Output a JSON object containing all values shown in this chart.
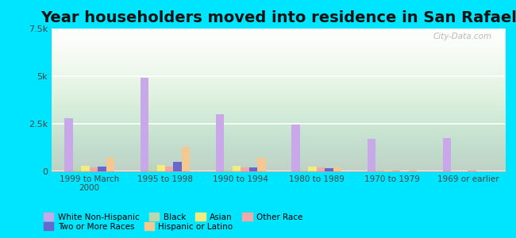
{
  "title": "Year householders moved into residence in San Rafael",
  "categories": [
    "1999 to March\n2000",
    "1995 to 1998",
    "1990 to 1994",
    "1980 to 1989",
    "1970 to 1979",
    "1969 or earlier"
  ],
  "series": {
    "White Non-Hispanic": [
      2800,
      4900,
      3000,
      2450,
      1700,
      1750
    ],
    "Black": [
      200,
      300,
      100,
      100,
      30,
      20
    ],
    "Asian": [
      300,
      350,
      300,
      250,
      30,
      20
    ],
    "Other Race": [
      200,
      250,
      200,
      200,
      50,
      30
    ],
    "Two or More Races": [
      250,
      500,
      200,
      150,
      20,
      10
    ],
    "Hispanic or Latino": [
      700,
      1300,
      700,
      200,
      30,
      20
    ]
  },
  "colors": {
    "White Non-Hispanic": "#c8a8e8",
    "Black": "#b8d8b0",
    "Asian": "#f0ec80",
    "Other Race": "#f0a8a8",
    "Two or More Races": "#6868cc",
    "Hispanic or Latino": "#f5c890"
  },
  "ylim": [
    0,
    7500
  ],
  "yticks": [
    0,
    2500,
    5000,
    7500
  ],
  "yticklabels": [
    "0",
    "2.5k",
    "5k",
    "7.5k"
  ],
  "background_color": "#00e5ff",
  "title_fontsize": 14,
  "watermark": "City-Data.com",
  "legend_order": [
    "White Non-Hispanic",
    "Black",
    "Asian",
    "Other Race",
    "Two or More Races",
    "Hispanic or Latino"
  ]
}
